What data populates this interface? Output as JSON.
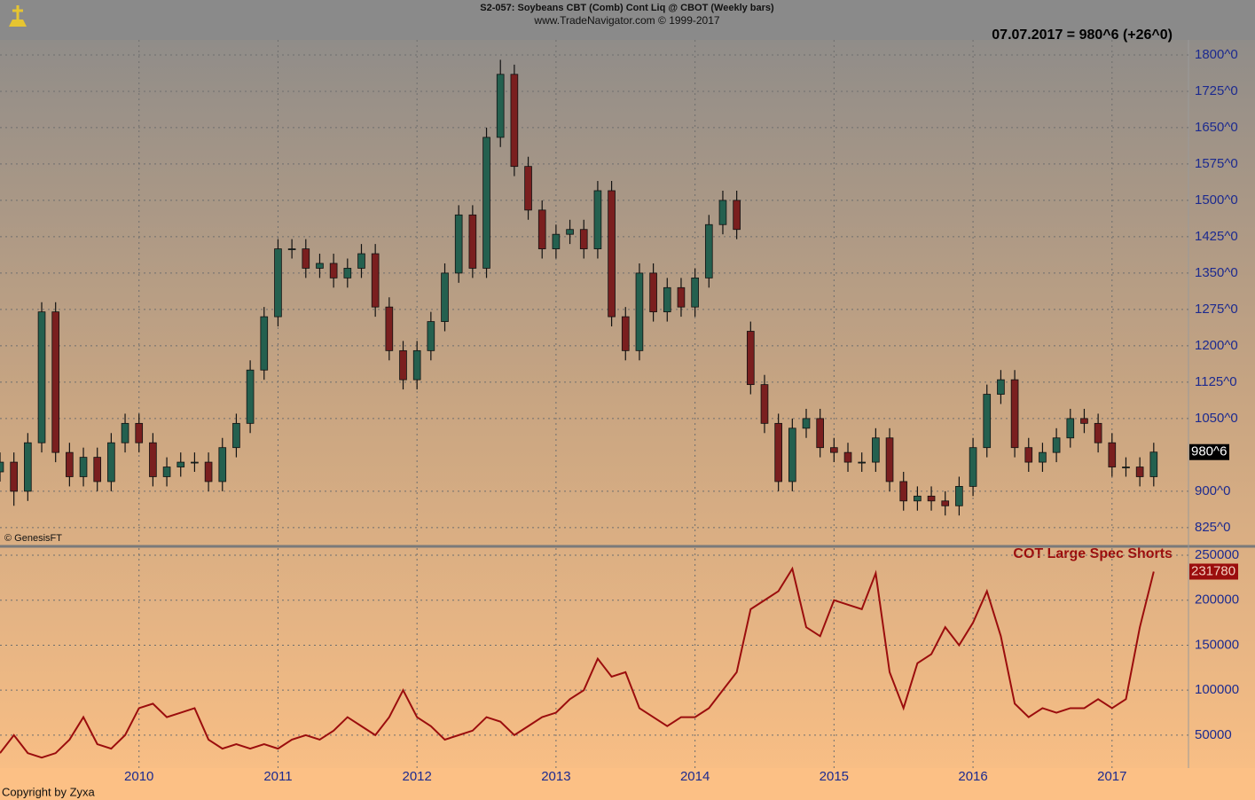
{
  "chart_data": [
    {
      "type": "candlestick",
      "title": "S2-057:  Soybeans CBT (Comb) Cont Liq @ CBOT  (Weekly bars)",
      "subtitle": "www.TradeNavigator.com © 1999-2017",
      "headline": "07.07.2017 = 980^6 (+26^0)",
      "annotation": "© GenesisFT",
      "last_label": "980^6",
      "up_color": "#24604f",
      "down_color": "#7a1f1f",
      "wick_color": "#111111",
      "grid": true,
      "xlim": [
        2009.0,
        2017.55
      ],
      "ylim": [
        790,
        1831
      ],
      "yticks": [
        {
          "value": 825,
          "label": "825^0"
        },
        {
          "value": 900,
          "label": "900^0"
        },
        {
          "value": 1050,
          "label": "1050^0"
        },
        {
          "value": 1125,
          "label": "1125^0"
        },
        {
          "value": 1200,
          "label": "1200^0"
        },
        {
          "value": 1275,
          "label": "1275^0"
        },
        {
          "value": 1350,
          "label": "1350^0"
        },
        {
          "value": 1425,
          "label": "1425^0"
        },
        {
          "value": 1500,
          "label": "1500^0"
        },
        {
          "value": 1575,
          "label": "1575^0"
        },
        {
          "value": 1650,
          "label": "1650^0"
        },
        {
          "value": 1725,
          "label": "1725^0"
        },
        {
          "value": 1800,
          "label": "1800^0"
        }
      ],
      "x": [
        2009.0,
        2009.1,
        2009.2,
        2009.3,
        2009.4,
        2009.5,
        2009.6,
        2009.7,
        2009.8,
        2009.9,
        2010.0,
        2010.1,
        2010.2,
        2010.3,
        2010.4,
        2010.5,
        2010.6,
        2010.7,
        2010.8,
        2010.9,
        2011.0,
        2011.1,
        2011.2,
        2011.3,
        2011.4,
        2011.5,
        2011.6,
        2011.7,
        2011.8,
        2011.9,
        2012.0,
        2012.1,
        2012.2,
        2012.3,
        2012.4,
        2012.5,
        2012.6,
        2012.7,
        2012.8,
        2012.9,
        2013.0,
        2013.1,
        2013.2,
        2013.3,
        2013.4,
        2013.5,
        2013.6,
        2013.7,
        2013.8,
        2013.9,
        2014.0,
        2014.1,
        2014.2,
        2014.3,
        2014.4,
        2014.5,
        2014.6,
        2014.7,
        2014.8,
        2014.9,
        2015.0,
        2015.1,
        2015.2,
        2015.3,
        2015.4,
        2015.5,
        2015.6,
        2015.7,
        2015.8,
        2015.9,
        2016.0,
        2016.1,
        2016.2,
        2016.3,
        2016.4,
        2016.5,
        2016.6,
        2016.7,
        2016.8,
        2016.9,
        2017.0,
        2017.1,
        2017.2,
        2017.3
      ],
      "open": [
        940,
        960,
        900,
        1000,
        1270,
        980,
        930,
        970,
        920,
        1000,
        1040,
        1000,
        930,
        950,
        960,
        960,
        920,
        990,
        1040,
        1150,
        1260,
        1400,
        1400,
        1360,
        1370,
        1340,
        1360,
        1390,
        1280,
        1190,
        1130,
        1190,
        1250,
        1350,
        1470,
        1360,
        1630,
        1760,
        1570,
        1480,
        1400,
        1430,
        1440,
        1400,
        1520,
        1260,
        1190,
        1350,
        1270,
        1320,
        1280,
        1340,
        1450,
        1500,
        1230,
        1120,
        1040,
        920,
        1030,
        1050,
        990,
        980,
        960,
        960,
        1010,
        920,
        880,
        890,
        880,
        870,
        910,
        990,
        1100,
        1130,
        990,
        960,
        980,
        1010,
        1050,
        1040,
        1000,
        950,
        950,
        930
      ],
      "high": [
        980,
        980,
        1020,
        1290,
        1290,
        1000,
        990,
        990,
        1020,
        1060,
        1060,
        1020,
        970,
        980,
        980,
        980,
        1010,
        1060,
        1170,
        1280,
        1420,
        1420,
        1420,
        1390,
        1390,
        1380,
        1410,
        1410,
        1300,
        1210,
        1210,
        1270,
        1370,
        1490,
        1490,
        1650,
        1790,
        1780,
        1590,
        1500,
        1450,
        1460,
        1460,
        1540,
        1540,
        1280,
        1370,
        1370,
        1340,
        1340,
        1360,
        1470,
        1520,
        1520,
        1250,
        1140,
        1060,
        1050,
        1070,
        1070,
        1010,
        1000,
        980,
        1030,
        1030,
        940,
        910,
        910,
        900,
        930,
        1010,
        1120,
        1150,
        1150,
        1010,
        1000,
        1030,
        1070,
        1070,
        1060,
        1020,
        970,
        970,
        1000
      ],
      "low": [
        920,
        870,
        880,
        980,
        960,
        910,
        910,
        900,
        900,
        980,
        980,
        910,
        910,
        930,
        940,
        900,
        900,
        970,
        1020,
        1130,
        1240,
        1380,
        1340,
        1340,
        1320,
        1320,
        1340,
        1260,
        1170,
        1110,
        1110,
        1170,
        1230,
        1330,
        1340,
        1340,
        1610,
        1550,
        1460,
        1380,
        1380,
        1410,
        1380,
        1380,
        1240,
        1170,
        1170,
        1250,
        1250,
        1260,
        1260,
        1320,
        1430,
        1420,
        1100,
        1020,
        900,
        900,
        1010,
        970,
        960,
        940,
        940,
        940,
        900,
        860,
        860,
        860,
        850,
        850,
        890,
        970,
        1080,
        970,
        940,
        940,
        960,
        990,
        1020,
        980,
        930,
        930,
        910,
        910
      ],
      "close": [
        960,
        900,
        1000,
        1270,
        980,
        930,
        970,
        920,
        1000,
        1040,
        1000,
        930,
        950,
        960,
        960,
        920,
        990,
        1040,
        1150,
        1260,
        1400,
        1400,
        1360,
        1370,
        1340,
        1360,
        1390,
        1280,
        1190,
        1130,
        1190,
        1250,
        1350,
        1470,
        1360,
        1630,
        1760,
        1570,
        1480,
        1400,
        1430,
        1440,
        1400,
        1520,
        1260,
        1190,
        1350,
        1270,
        1320,
        1280,
        1340,
        1450,
        1500,
        1440,
        1120,
        1040,
        920,
        1030,
        1050,
        990,
        980,
        960,
        960,
        1010,
        920,
        880,
        890,
        880,
        870,
        910,
        990,
        1100,
        1130,
        990,
        960,
        980,
        1010,
        1050,
        1040,
        1000,
        950,
        950,
        930,
        980.75
      ]
    },
    {
      "type": "line",
      "footer": "Copyright by Zyxa",
      "grid": true,
      "xlim": [
        2009.0,
        2017.55
      ],
      "ylim": [
        13400,
        257900
      ],
      "xticks": [
        2010,
        2011,
        2012,
        2013,
        2014,
        2015,
        2016,
        2017
      ],
      "yticks": [
        50000,
        100000,
        150000,
        200000,
        250000
      ],
      "x": [
        2009.0,
        2009.1,
        2009.2,
        2009.3,
        2009.4,
        2009.5,
        2009.6,
        2009.7,
        2009.8,
        2009.9,
        2010.0,
        2010.1,
        2010.2,
        2010.3,
        2010.4,
        2010.5,
        2010.6,
        2010.7,
        2010.8,
        2010.9,
        2011.0,
        2011.1,
        2011.2,
        2011.3,
        2011.4,
        2011.5,
        2011.6,
        2011.7,
        2011.8,
        2011.9,
        2012.0,
        2012.1,
        2012.2,
        2012.3,
        2012.4,
        2012.5,
        2012.6,
        2012.7,
        2012.8,
        2012.9,
        2013.0,
        2013.1,
        2013.2,
        2013.3,
        2013.4,
        2013.5,
        2013.6,
        2013.7,
        2013.8,
        2013.9,
        2014.0,
        2014.1,
        2014.2,
        2014.3,
        2014.4,
        2014.5,
        2014.6,
        2014.7,
        2014.8,
        2014.9,
        2015.0,
        2015.1,
        2015.2,
        2015.3,
        2015.4,
        2015.5,
        2015.6,
        2015.7,
        2015.8,
        2015.9,
        2016.0,
        2016.1,
        2016.2,
        2016.3,
        2016.4,
        2016.5,
        2016.6,
        2016.7,
        2016.8,
        2016.9,
        2017.0,
        2017.1,
        2017.2,
        2017.3
      ],
      "series": [
        {
          "name": "COT Large Spec Shorts",
          "color": "#9b0d0d",
          "values": [
            30000,
            50000,
            30000,
            25000,
            30000,
            45000,
            70000,
            40000,
            35000,
            50000,
            80000,
            85000,
            70000,
            75000,
            80000,
            45000,
            35000,
            40000,
            35000,
            40000,
            35000,
            45000,
            50000,
            45000,
            55000,
            70000,
            60000,
            50000,
            70000,
            100000,
            70000,
            60000,
            45000,
            50000,
            55000,
            70000,
            65000,
            50000,
            60000,
            70000,
            75000,
            90000,
            100000,
            135000,
            115000,
            120000,
            80000,
            70000,
            60000,
            70000,
            70000,
            80000,
            100000,
            120000,
            190000,
            200000,
            210000,
            235000,
            170000,
            160000,
            200000,
            195000,
            190000,
            230000,
            120000,
            80000,
            130000,
            140000,
            170000,
            150000,
            175000,
            210000,
            160000,
            85000,
            70000,
            80000,
            75000,
            80000,
            80000,
            90000,
            80000,
            90000,
            170000,
            231780
          ]
        }
      ]
    }
  ]
}
